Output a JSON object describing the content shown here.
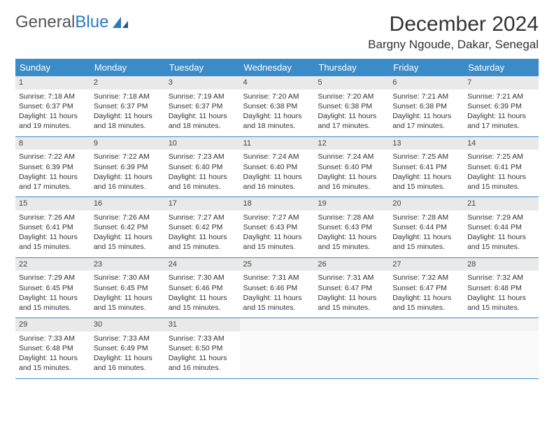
{
  "brand": {
    "name_part1": "General",
    "name_part2": "Blue"
  },
  "title": "December 2024",
  "location": "Bargny Ngoude, Dakar, Senegal",
  "colors": {
    "header_bg": "#3b8bc9",
    "header_text": "#ffffff",
    "daynum_bg": "#e9e9e9",
    "border": "#3b8bc9",
    "text": "#333333",
    "brand_gray": "#555555",
    "brand_blue": "#2a7ac0"
  },
  "day_headers": [
    "Sunday",
    "Monday",
    "Tuesday",
    "Wednesday",
    "Thursday",
    "Friday",
    "Saturday"
  ],
  "weeks": [
    [
      {
        "n": "1",
        "sr": "7:18 AM",
        "ss": "6:37 PM",
        "dl": "11 hours and 19 minutes."
      },
      {
        "n": "2",
        "sr": "7:18 AM",
        "ss": "6:37 PM",
        "dl": "11 hours and 18 minutes."
      },
      {
        "n": "3",
        "sr": "7:19 AM",
        "ss": "6:37 PM",
        "dl": "11 hours and 18 minutes."
      },
      {
        "n": "4",
        "sr": "7:20 AM",
        "ss": "6:38 PM",
        "dl": "11 hours and 18 minutes."
      },
      {
        "n": "5",
        "sr": "7:20 AM",
        "ss": "6:38 PM",
        "dl": "11 hours and 17 minutes."
      },
      {
        "n": "6",
        "sr": "7:21 AM",
        "ss": "6:38 PM",
        "dl": "11 hours and 17 minutes."
      },
      {
        "n": "7",
        "sr": "7:21 AM",
        "ss": "6:39 PM",
        "dl": "11 hours and 17 minutes."
      }
    ],
    [
      {
        "n": "8",
        "sr": "7:22 AM",
        "ss": "6:39 PM",
        "dl": "11 hours and 17 minutes."
      },
      {
        "n": "9",
        "sr": "7:22 AM",
        "ss": "6:39 PM",
        "dl": "11 hours and 16 minutes."
      },
      {
        "n": "10",
        "sr": "7:23 AM",
        "ss": "6:40 PM",
        "dl": "11 hours and 16 minutes."
      },
      {
        "n": "11",
        "sr": "7:24 AM",
        "ss": "6:40 PM",
        "dl": "11 hours and 16 minutes."
      },
      {
        "n": "12",
        "sr": "7:24 AM",
        "ss": "6:40 PM",
        "dl": "11 hours and 16 minutes."
      },
      {
        "n": "13",
        "sr": "7:25 AM",
        "ss": "6:41 PM",
        "dl": "11 hours and 15 minutes."
      },
      {
        "n": "14",
        "sr": "7:25 AM",
        "ss": "6:41 PM",
        "dl": "11 hours and 15 minutes."
      }
    ],
    [
      {
        "n": "15",
        "sr": "7:26 AM",
        "ss": "6:41 PM",
        "dl": "11 hours and 15 minutes."
      },
      {
        "n": "16",
        "sr": "7:26 AM",
        "ss": "6:42 PM",
        "dl": "11 hours and 15 minutes."
      },
      {
        "n": "17",
        "sr": "7:27 AM",
        "ss": "6:42 PM",
        "dl": "11 hours and 15 minutes."
      },
      {
        "n": "18",
        "sr": "7:27 AM",
        "ss": "6:43 PM",
        "dl": "11 hours and 15 minutes."
      },
      {
        "n": "19",
        "sr": "7:28 AM",
        "ss": "6:43 PM",
        "dl": "11 hours and 15 minutes."
      },
      {
        "n": "20",
        "sr": "7:28 AM",
        "ss": "6:44 PM",
        "dl": "11 hours and 15 minutes."
      },
      {
        "n": "21",
        "sr": "7:29 AM",
        "ss": "6:44 PM",
        "dl": "11 hours and 15 minutes."
      }
    ],
    [
      {
        "n": "22",
        "sr": "7:29 AM",
        "ss": "6:45 PM",
        "dl": "11 hours and 15 minutes."
      },
      {
        "n": "23",
        "sr": "7:30 AM",
        "ss": "6:45 PM",
        "dl": "11 hours and 15 minutes."
      },
      {
        "n": "24",
        "sr": "7:30 AM",
        "ss": "6:46 PM",
        "dl": "11 hours and 15 minutes."
      },
      {
        "n": "25",
        "sr": "7:31 AM",
        "ss": "6:46 PM",
        "dl": "11 hours and 15 minutes."
      },
      {
        "n": "26",
        "sr": "7:31 AM",
        "ss": "6:47 PM",
        "dl": "11 hours and 15 minutes."
      },
      {
        "n": "27",
        "sr": "7:32 AM",
        "ss": "6:47 PM",
        "dl": "11 hours and 15 minutes."
      },
      {
        "n": "28",
        "sr": "7:32 AM",
        "ss": "6:48 PM",
        "dl": "11 hours and 15 minutes."
      }
    ],
    [
      {
        "n": "29",
        "sr": "7:33 AM",
        "ss": "6:48 PM",
        "dl": "11 hours and 15 minutes."
      },
      {
        "n": "30",
        "sr": "7:33 AM",
        "ss": "6:49 PM",
        "dl": "11 hours and 16 minutes."
      },
      {
        "n": "31",
        "sr": "7:33 AM",
        "ss": "6:50 PM",
        "dl": "11 hours and 16 minutes."
      },
      null,
      null,
      null,
      null
    ]
  ],
  "labels": {
    "sunrise": "Sunrise:",
    "sunset": "Sunset:",
    "daylight": "Daylight:"
  }
}
